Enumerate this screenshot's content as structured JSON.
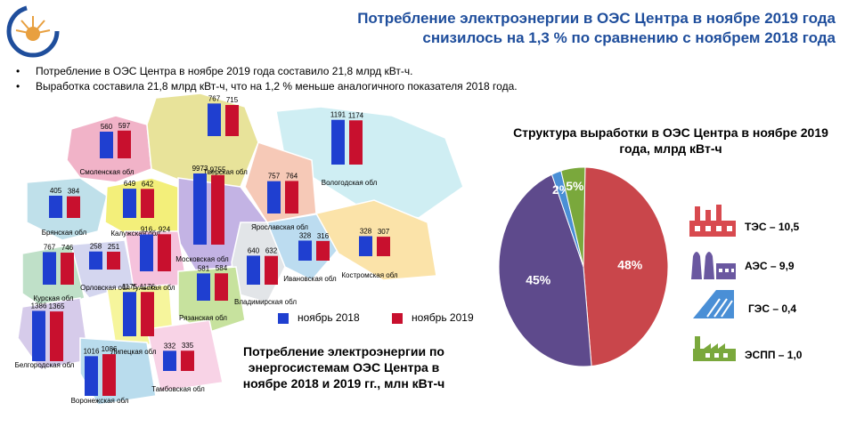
{
  "title_line1": "Потребление электроэнергии в ОЭС Центра в ноябре 2019 года",
  "title_line2": "снизилось на 1,3 % по сравнению с ноябрем 2018 года",
  "bullets": [
    "Потребление  в ОЭС Центра в ноябре 2019 года составило  21,8 млрд кВт-ч.",
    "Выработка  составила  21,8 млрд кВт-ч, что  на 1,2 % меньше  аналогичного  показателя  2018 года."
  ],
  "colors": {
    "series2018": "#1f3fd0",
    "series2019": "#c8102e",
    "title": "#1f4e9c"
  },
  "map_title": "Потребление электроэнергии по энергосистемам ОЭС Центра в ноябре 2018 и 2019 гг., млн кВт-ч",
  "pie_title": "Структура выработки в ОЭС Центра в ноябре 2019 года, млрд кВт-ч",
  "chart_data": [
    {
      "type": "bar",
      "title": "Потребление электроэнергии по энергосистемам ОЭС Центра в ноябре 2018 и 2019 гг., млн кВт-ч",
      "series": [
        {
          "name": "ноябрь 2018",
          "values": [
            560,
            767,
            1191,
            405,
            649,
            9973,
            757,
            258,
            916,
            640,
            328,
            328,
            767,
            581,
            1175,
            1386,
            1016,
            332
          ]
        },
        {
          "name": "ноябрь 2019",
          "values": [
            597,
            715,
            1174,
            384,
            642,
            9755,
            764,
            251,
            924,
            632,
            316,
            307,
            746,
            584,
            1176,
            1365,
            1086,
            335
          ]
        }
      ],
      "categories": [
        "Смоленская обл",
        "Тверская обл",
        "Вологодская обл",
        "Брянская обл",
        "Калужская обл",
        "Московская обл",
        "Ярославская обл",
        "Орловская обл",
        "Тульская обл",
        "Владимирская обл",
        "Ивановская обл",
        "Костромская обл",
        "Курская обл",
        "Рязанская обл",
        "Липецкая обл",
        "Белгородская обл",
        "Воронежская обл",
        "Тамбовская обл"
      ]
    },
    {
      "type": "pie",
      "title": "Структура выработки в ОЭС Центра в ноябре 2019 года, млрд кВт-ч",
      "slices": [
        {
          "name": "ТЭС",
          "label": "ТЭС – 10,5",
          "value": 10.5,
          "pct": "48%",
          "color": "#c9464b"
        },
        {
          "name": "АЭС",
          "label": "АЭС – 9,9",
          "value": 9.9,
          "pct": "45%",
          "color": "#5e4a8c"
        },
        {
          "name": "ГЭС",
          "label": "ГЭС – 0,4",
          "value": 0.4,
          "pct": "2%",
          "color": "#4a8fd6"
        },
        {
          "name": "ЭСПП",
          "label": "ЭСПП – 1,0",
          "value": 1.0,
          "pct": "5%",
          "color": "#7aa83c"
        }
      ]
    }
  ]
}
